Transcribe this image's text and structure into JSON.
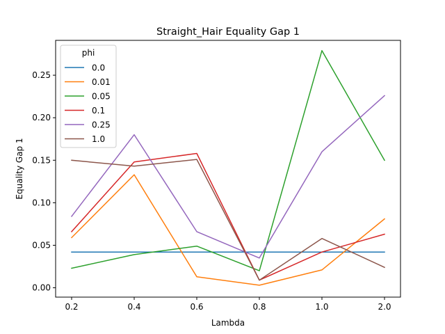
{
  "chart_data": {
    "type": "line",
    "title": "Straight_Hair Equality Gap 1",
    "xlabel": "Lambda",
    "ylabel": "Equality Gap 1",
    "categories": [
      "0.2",
      "0.4",
      "0.6",
      "0.8",
      "1.0",
      "2.0"
    ],
    "ylim": [
      -0.011,
      0.291
    ],
    "yticks": [
      "0.00",
      "0.05",
      "0.10",
      "0.15",
      "0.20",
      "0.25"
    ],
    "grid": false,
    "legend": {
      "title": "phi",
      "placement": "top-left"
    },
    "series": [
      {
        "name": "0.0",
        "color": "#1f77b4",
        "values": [
          0.042,
          0.042,
          0.042,
          0.042,
          0.042,
          0.042
        ]
      },
      {
        "name": "0.01",
        "color": "#ff7f0e",
        "values": [
          0.059,
          0.133,
          0.013,
          0.003,
          0.021,
          0.081
        ]
      },
      {
        "name": "0.05",
        "color": "#2ca02c",
        "values": [
          0.023,
          0.039,
          0.049,
          0.02,
          0.279,
          0.15
        ]
      },
      {
        "name": "0.1",
        "color": "#d62728",
        "values": [
          0.066,
          0.148,
          0.158,
          0.009,
          0.042,
          0.063
        ]
      },
      {
        "name": "0.25",
        "color": "#9467bd",
        "values": [
          0.084,
          0.18,
          0.066,
          0.035,
          0.16,
          0.226
        ]
      },
      {
        "name": "1.0",
        "color": "#8c564b",
        "values": [
          0.15,
          0.143,
          0.151,
          0.009,
          0.058,
          0.024
        ]
      }
    ]
  }
}
